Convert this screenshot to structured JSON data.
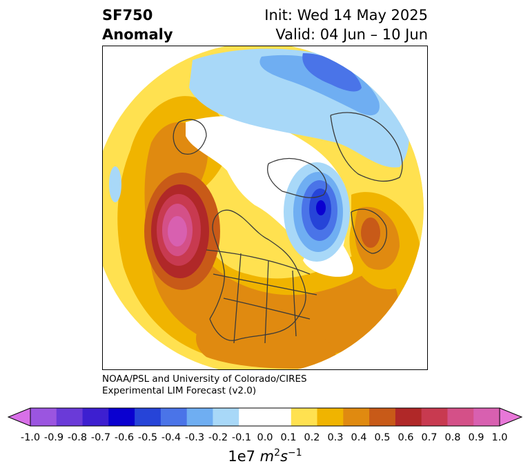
{
  "title": {
    "variable": "SF750",
    "subtitle": "Anomaly",
    "init": "Init: Wed 14 May 2025",
    "valid": "Valid: 04 Jun – 10 Jun"
  },
  "credit": {
    "line1": "NOAA/PSL and University of Colorado/CIRES",
    "line2": "Experimental LIM Forecast (v2.0)"
  },
  "colorbar": {
    "ticks": [
      "-1.0",
      "-0.9",
      "-0.8",
      "-0.7",
      "-0.6",
      "-0.5",
      "-0.4",
      "-0.3",
      "-0.2",
      "-0.1",
      "0.0",
      "0.1",
      "0.2",
      "0.3",
      "0.4",
      "0.5",
      "0.6",
      "0.7",
      "0.8",
      "0.9",
      "1.0"
    ],
    "colors": [
      "#9b55e0",
      "#6a3ad8",
      "#3d1fd0",
      "#0a00d0",
      "#2644d8",
      "#4a74e8",
      "#6faef2",
      "#a8d8f8",
      "#ffffff",
      "#ffffff",
      "#ffe150",
      "#f0b400",
      "#e08a10",
      "#c85a18",
      "#b02828",
      "#c83a50",
      "#d45088",
      "#d860b0"
    ],
    "extend_low_color": "#d870e8",
    "extend_high_color": "#e878d8",
    "units_base": "1e7 ",
    "units_m": "m",
    "units_m_exp": "2",
    "units_s": "s",
    "units_s_exp": "−1"
  },
  "map": {
    "projection": "north-polar-stereographic",
    "region": "Northern Hemisphere",
    "positive_color_scale": [
      "#ffe150",
      "#f0b400",
      "#e08a10",
      "#c85a18",
      "#b02828",
      "#c83a50",
      "#d45088",
      "#d860b0"
    ],
    "negative_color_scale": [
      "#a8d8f8",
      "#6faef2",
      "#4a74e8",
      "#2644d8",
      "#0a00d0"
    ]
  }
}
